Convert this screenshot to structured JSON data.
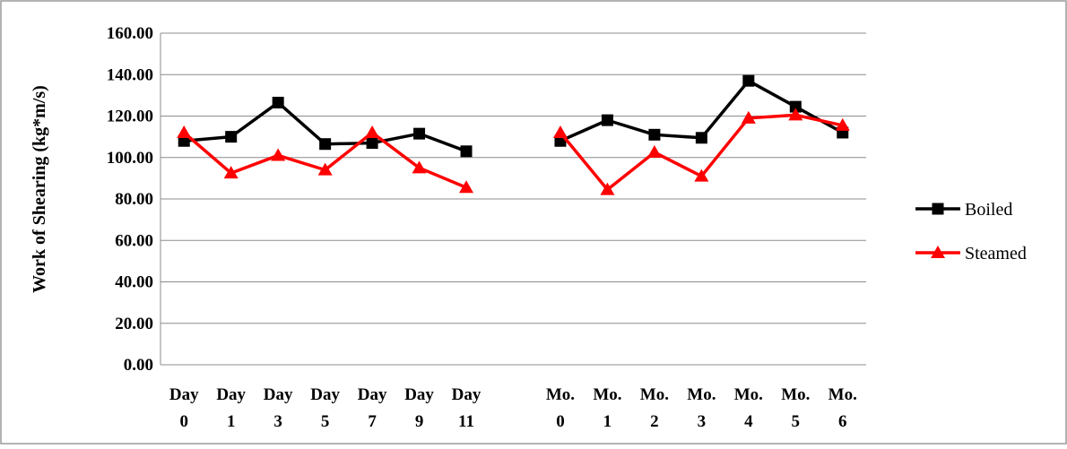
{
  "chart_data": {
    "type": "line",
    "ylabel": "Work of Shearing (kg*m/s)",
    "ylim": [
      0,
      160
    ],
    "y_ticks": [
      "0.00",
      "20.00",
      "40.00",
      "60.00",
      "80.00",
      "100.00",
      "120.00",
      "140.00",
      "160.00"
    ],
    "grid": "horizontal",
    "legend_position": "right",
    "categories": [
      [
        "Day",
        "0"
      ],
      [
        "Day",
        "1"
      ],
      [
        "Day",
        "3"
      ],
      [
        "Day",
        "5"
      ],
      [
        "Day",
        "7"
      ],
      [
        "Day",
        "9"
      ],
      [
        "Day",
        "11"
      ],
      [
        "",
        ""
      ],
      [
        "Mo.",
        "0"
      ],
      [
        "Mo.",
        "1"
      ],
      [
        "Mo.",
        "2"
      ],
      [
        "Mo.",
        "3"
      ],
      [
        "Mo.",
        "4"
      ],
      [
        "Mo.",
        "5"
      ],
      [
        "Mo.",
        "6"
      ]
    ],
    "series": [
      {
        "name": "Boiled",
        "color": "#000000",
        "marker": "square",
        "values": [
          108,
          110,
          126.5,
          106.5,
          107,
          111.5,
          103,
          null,
          108,
          118,
          111,
          109.5,
          137,
          124.5,
          112
        ]
      },
      {
        "name": "Steamed",
        "color": "#ff0000",
        "marker": "triangle",
        "values": [
          112,
          92.5,
          101,
          94,
          112,
          95,
          85.5,
          null,
          112,
          84.5,
          102.5,
          91,
          119,
          120.5,
          115.5
        ]
      }
    ]
  }
}
